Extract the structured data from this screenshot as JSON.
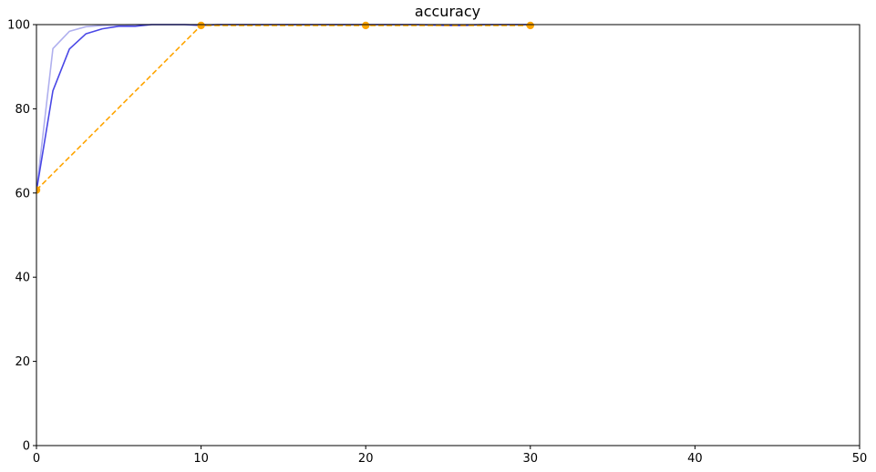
{
  "chart_data": {
    "type": "line",
    "title": "accuracy",
    "xlabel": "",
    "ylabel": "",
    "xlim": [
      0,
      50
    ],
    "ylim": [
      0,
      100
    ],
    "xticks": [
      0,
      10,
      20,
      30,
      40,
      50
    ],
    "yticks": [
      0,
      20,
      40,
      60,
      80,
      100
    ],
    "grid": false,
    "series": [
      {
        "style": "solid",
        "color": "#b0b0ee",
        "x": [
          0,
          1,
          2,
          3,
          4,
          5,
          6,
          7,
          8,
          9,
          10,
          11,
          12,
          13,
          14,
          15,
          16,
          17,
          18,
          19,
          20,
          21,
          22,
          23,
          24,
          25,
          26,
          27,
          28,
          29,
          30
        ],
        "y": [
          60.5,
          94.3,
          98.4,
          99.5,
          99.8,
          99.9,
          100,
          100,
          100,
          100,
          100,
          100,
          100,
          100,
          100,
          100,
          100,
          100,
          100,
          100,
          100,
          100,
          100,
          100,
          100,
          100,
          100,
          100,
          100,
          100,
          100
        ]
      },
      {
        "style": "solid",
        "color": "#4a48e6",
        "x": [
          0,
          1,
          2,
          3,
          4,
          5,
          6,
          7,
          8,
          9,
          10,
          11,
          12,
          13,
          14,
          15,
          16,
          17,
          18,
          19,
          20,
          21,
          22,
          23,
          24,
          25,
          26,
          27,
          28,
          29,
          30
        ],
        "y": [
          60.5,
          84.3,
          94.2,
          97.8,
          99.0,
          99.6,
          99.6,
          100,
          100,
          100,
          99.8,
          100,
          100,
          100,
          100,
          100,
          100,
          100,
          100,
          100,
          100,
          100,
          100,
          100,
          99.9,
          99.8,
          99.8,
          100,
          100,
          100,
          100
        ]
      },
      {
        "style": "dashed",
        "marker": "circle",
        "color": "#ffa500",
        "x": [
          0,
          10,
          20,
          30
        ],
        "y": [
          60.7,
          99.8,
          99.8,
          99.8
        ]
      }
    ]
  }
}
